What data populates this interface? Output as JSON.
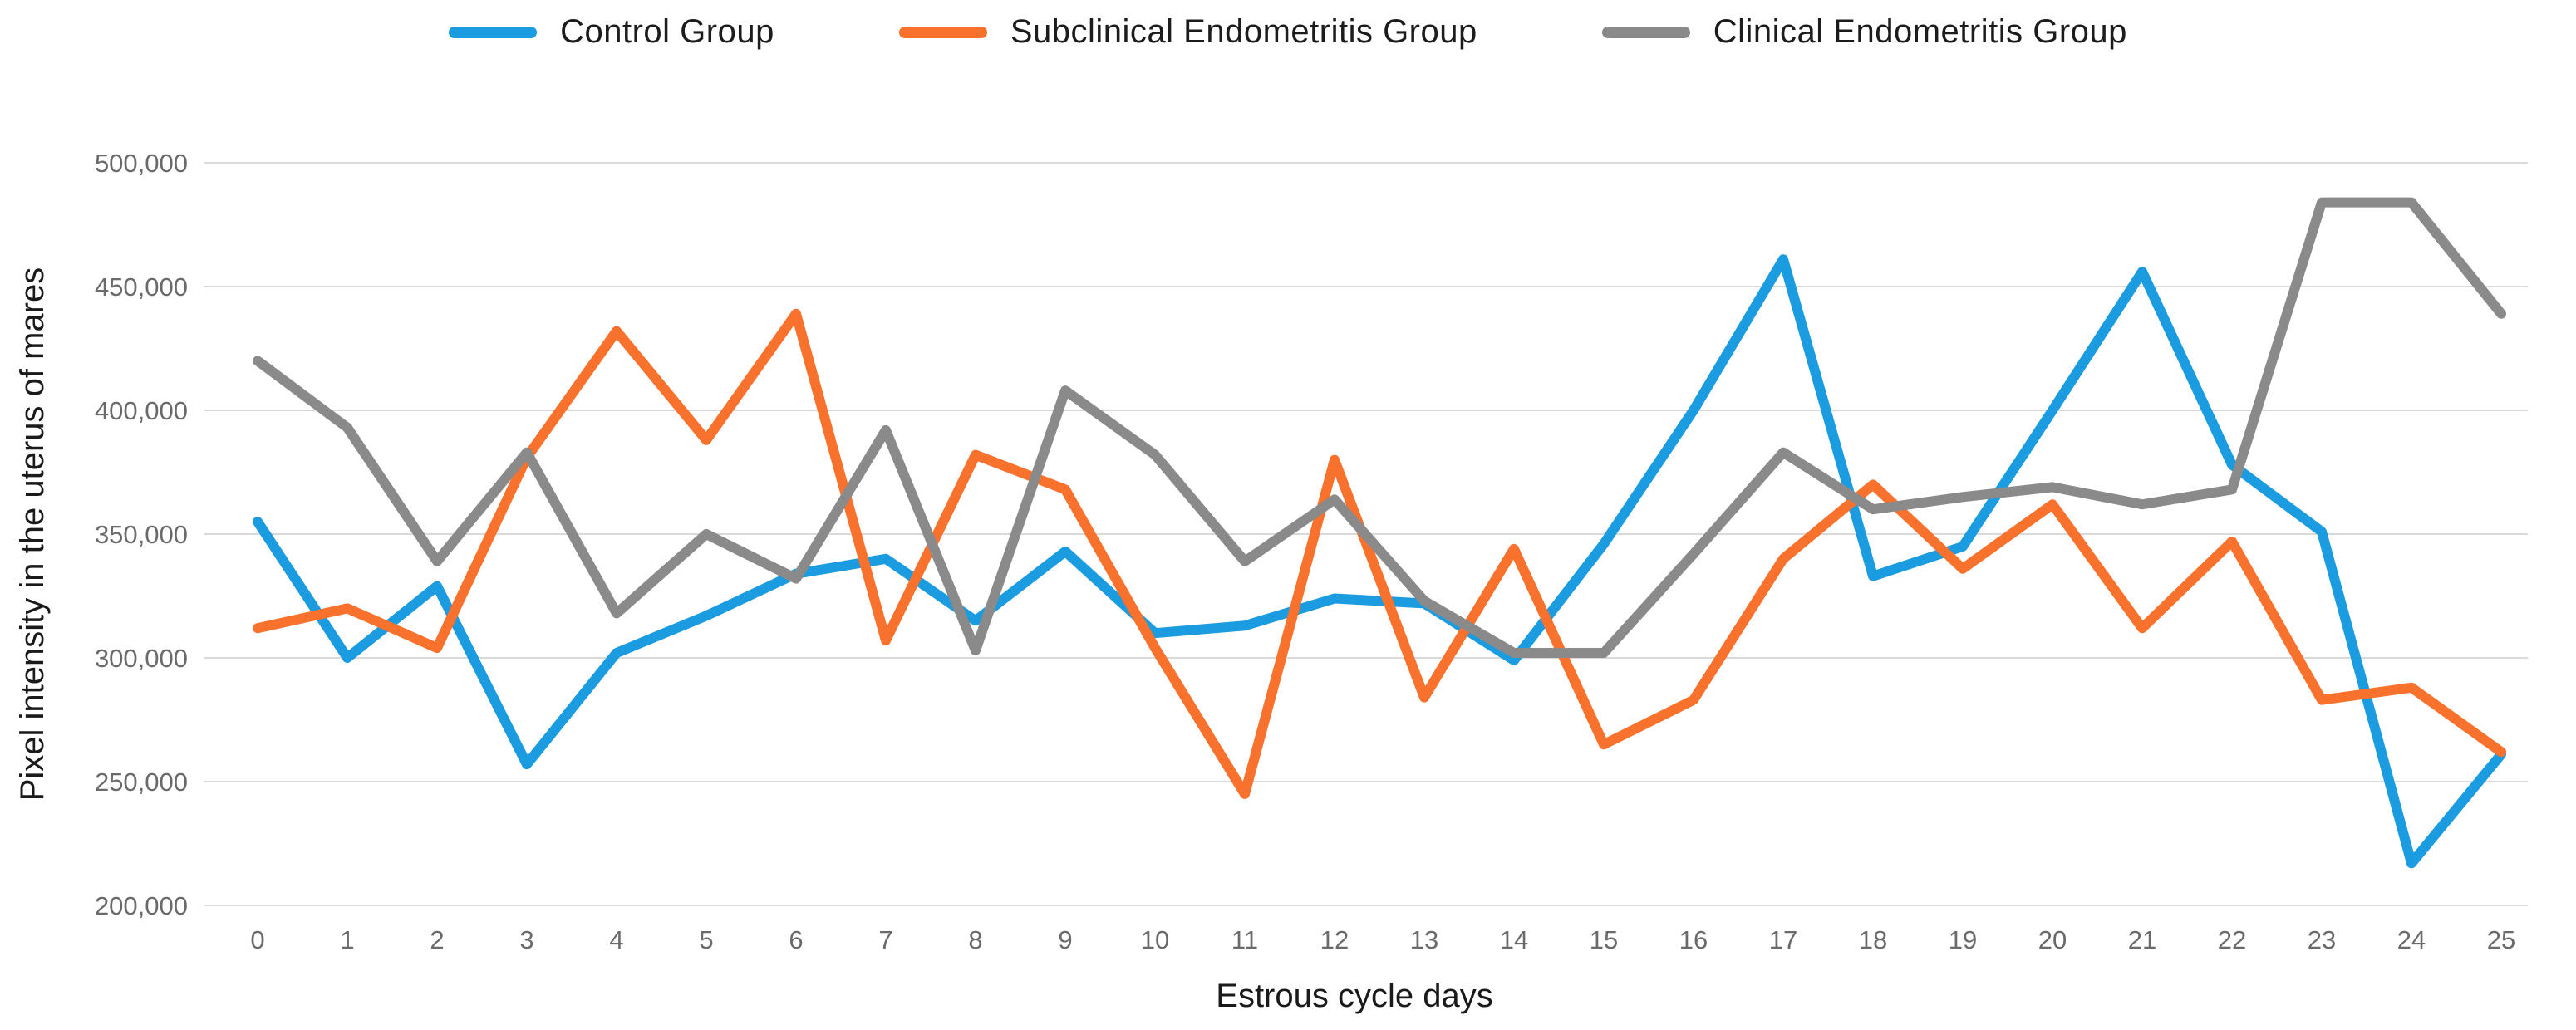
{
  "chart_data": {
    "type": "line",
    "title": "",
    "xlabel": "Estrous cycle days",
    "ylabel": "Pixel intensity in the uterus of mares",
    "x": [
      0,
      1,
      2,
      3,
      4,
      5,
      6,
      7,
      8,
      9,
      10,
      11,
      12,
      13,
      14,
      15,
      16,
      17,
      18,
      19,
      20,
      21,
      22,
      23,
      24,
      25
    ],
    "series": [
      {
        "name": "Control Group",
        "color": "#1B9CE0",
        "values": [
          355000,
          300000,
          329000,
          257000,
          302000,
          317000,
          334000,
          340000,
          315000,
          343000,
          310000,
          313000,
          324000,
          322000,
          299000,
          346000,
          400000,
          461000,
          333000,
          345000,
          400000,
          456000,
          378000,
          351000,
          217000,
          261000
        ]
      },
      {
        "name": "Subclinical Endometritis Group",
        "color": "#F8712D",
        "values": [
          312000,
          320000,
          304000,
          381000,
          432000,
          388000,
          439000,
          307000,
          382000,
          368000,
          304000,
          245000,
          380000,
          284000,
          344000,
          265000,
          283000,
          340000,
          370000,
          336000,
          362000,
          312000,
          347000,
          283000,
          288000,
          262000
        ]
      },
      {
        "name": "Clinical Endometritis Group",
        "color": "#8A8A8A",
        "values": [
          420000,
          393000,
          339000,
          383000,
          318000,
          350000,
          332000,
          392000,
          303000,
          408000,
          382000,
          339000,
          364000,
          323000,
          302000,
          302000,
          342000,
          383000,
          360000,
          365000,
          369000,
          362000,
          368000,
          484000,
          484000,
          439000
        ]
      }
    ],
    "ylim": [
      200000,
      500000
    ],
    "yticks": [
      500000,
      450000,
      400000,
      350000,
      300000,
      250000,
      200000
    ],
    "ytick_labels": [
      "500,000",
      "450,000",
      "400,000",
      "350,000",
      "300,000",
      "250,000",
      "200,000"
    ],
    "grid": true,
    "legend_position": "top-center"
  },
  "colors": {
    "background": "#FFFFFF",
    "gridline": "#D9D9D9",
    "tick_text": "#6A6A6A",
    "axis_title_text": "#1A1A1A",
    "legend_text": "#1C1C1C"
  }
}
